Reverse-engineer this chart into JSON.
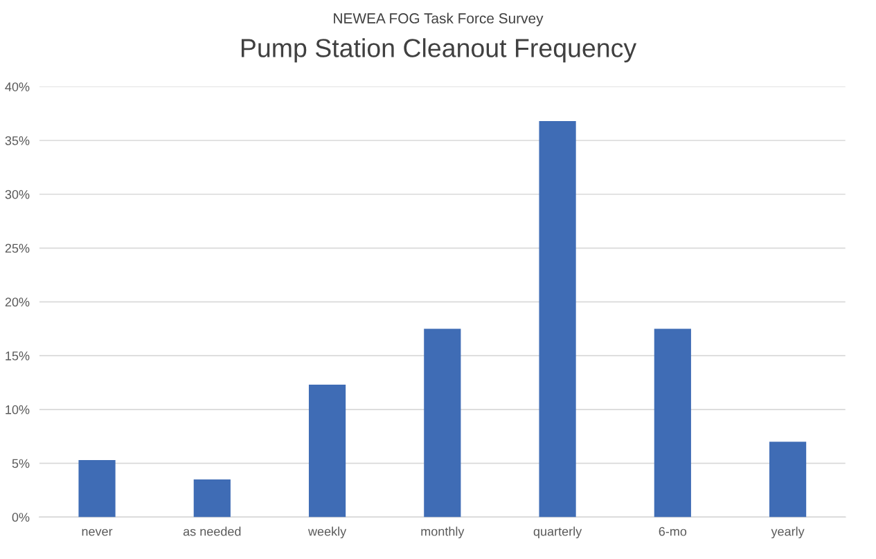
{
  "chart_data": {
    "type": "bar",
    "subtitle": "NEWEA FOG Task Force Survey",
    "title": "Pump Station Cleanout Frequency",
    "categories": [
      "never",
      "as needed",
      "weekly",
      "monthly",
      "quarterly",
      "6-mo",
      "yearly"
    ],
    "values": [
      5.3,
      3.5,
      12.3,
      17.5,
      36.8,
      17.5,
      7.0
    ],
    "color": "#3f6cb5",
    "ylim": [
      0,
      40
    ],
    "yticks": [
      {
        "value": 0,
        "label": "0%"
      },
      {
        "value": 5,
        "label": "5%"
      },
      {
        "value": 10,
        "label": "10%"
      },
      {
        "value": 15,
        "label": "15%"
      },
      {
        "value": 20,
        "label": "20%"
      },
      {
        "value": 25,
        "label": "25%"
      },
      {
        "value": 30,
        "label": "30%"
      },
      {
        "value": 35,
        "label": "35%"
      },
      {
        "value": 40,
        "label": "40%"
      }
    ],
    "grid": "y"
  }
}
